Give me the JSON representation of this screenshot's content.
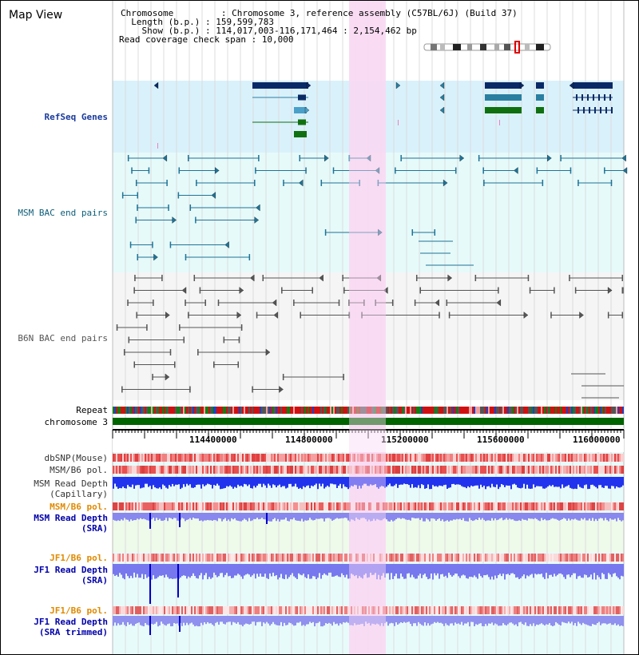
{
  "title": "Map View",
  "header": {
    "chromosome": "Chromosome         : Chromosome 3, reference assembly (C57BL/6J) (Build 37)",
    "length": "  Length (b.p.) : 159,599,783",
    "show": "    Show (b.p.) : 114,017,003-116,171,464 : 2,154,462 bp",
    "span": "Read coverage check span : 10,000"
  },
  "tracks": {
    "refseq": "RefSeq Genes",
    "msm_bac": "MSM BAC end pairs",
    "b6n_bac": "B6N BAC end pairs",
    "repeat": "Repeat",
    "chromosome": "chromosome 3",
    "dbsnp": "dbSNP(Mouse)",
    "msm_pol1": "MSM/B6 pol.",
    "msm_depth_cap": "MSM Read Depth",
    "capillary": "(Capillary)",
    "msm_pol2": "MSM/B6 pol.",
    "msm_depth_sra": "MSM Read Depth",
    "sra1": "(SRA)",
    "jf1_pol1": "JF1/B6 pol.",
    "jf1_depth_sra": "JF1 Read Depth",
    "sra2": "(SRA)",
    "jf1_pol2": "JF1/B6 pol.",
    "jf1_depth_trim": "JF1 Read Depth",
    "sra_trimmed": "(SRA trimmed)"
  },
  "axis": {
    "ticks": [
      "114400000",
      "114800000",
      "115200000",
      "115600000",
      "116000000"
    ]
  },
  "colors": {
    "refseq_bg": "#d9f1fb",
    "msm_bg": "#e6fafa",
    "b6n_bg": "#f5f5f5",
    "highlight": "#f9d9f3",
    "msm_label": "#0c5d78",
    "b6n_label": "#555555",
    "navy": "#0a2a66",
    "teal": "#2a7fa0",
    "green": "#107010",
    "orange": "#e08a00",
    "blue_label": "#0000aa"
  }
}
